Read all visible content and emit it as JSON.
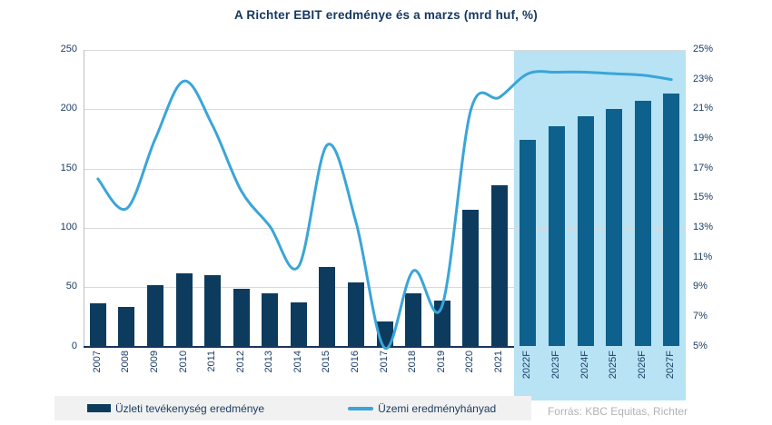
{
  "title": "A Richter EBIT eredménye és a marzs (mrd huf, %)",
  "source": "Forrás: KBC Equitas, Richter",
  "legend": {
    "bars_label": "Üzleti tevékenység eredménye",
    "line_label": "Üzemi eredményhányad"
  },
  "colors": {
    "bar_historical": "#0d3b5e",
    "bar_forecast": "#0e618c",
    "line": "#3aa5d8",
    "forecast_background": "#b8e3f5",
    "gridline": "#d9d9d9",
    "axis_text": "#1c3d63",
    "title_text": "#15375f",
    "source_text": "#b3b3b3",
    "legend_background": "#f1f1f1"
  },
  "chart_data": {
    "type": "bar",
    "subtype": "bar-line-combo",
    "title": "A Richter EBIT eredménye és a marzs (mrd huf, %)",
    "categories": [
      "2007",
      "2008",
      "2009",
      "2010",
      "2011",
      "2012",
      "2013",
      "2014",
      "2015",
      "2016",
      "2017",
      "2018",
      "2019",
      "2020",
      "2021",
      "2022F",
      "2023F",
      "2024F",
      "2025F",
      "2026F",
      "2027F"
    ],
    "forecast_start_category": "2022F",
    "series": [
      {
        "name": "Üzleti tevékenység eredménye",
        "type": "bar",
        "axis": "left",
        "values": [
          36,
          33,
          52,
          62,
          60,
          49,
          45,
          37,
          67,
          54,
          21,
          45,
          39,
          115,
          136,
          174,
          186,
          194,
          200,
          207,
          213
        ]
      },
      {
        "name": "Üzemi eredményhányad",
        "type": "line",
        "axis": "right",
        "values": [
          16.3,
          14.3,
          19.0,
          22.9,
          19.9,
          15.5,
          13.1,
          10.4,
          18.6,
          13.4,
          4.9,
          10.1,
          7.7,
          20.9,
          21.8,
          23.4,
          23.5,
          23.5,
          23.4,
          23.3,
          23.0
        ]
      }
    ],
    "left_axis": {
      "min": 0,
      "max": 250,
      "step": 50,
      "tick_labels": [
        "0",
        "50",
        "100",
        "150",
        "200",
        "250"
      ]
    },
    "right_axis": {
      "min": 5,
      "max": 25,
      "step": 2,
      "tick_labels": [
        "5%",
        "7%",
        "9%",
        "11%",
        "13%",
        "15%",
        "17%",
        "19%",
        "21%",
        "23%",
        "25%"
      ]
    },
    "grid": true,
    "legend_position": "bottom"
  }
}
